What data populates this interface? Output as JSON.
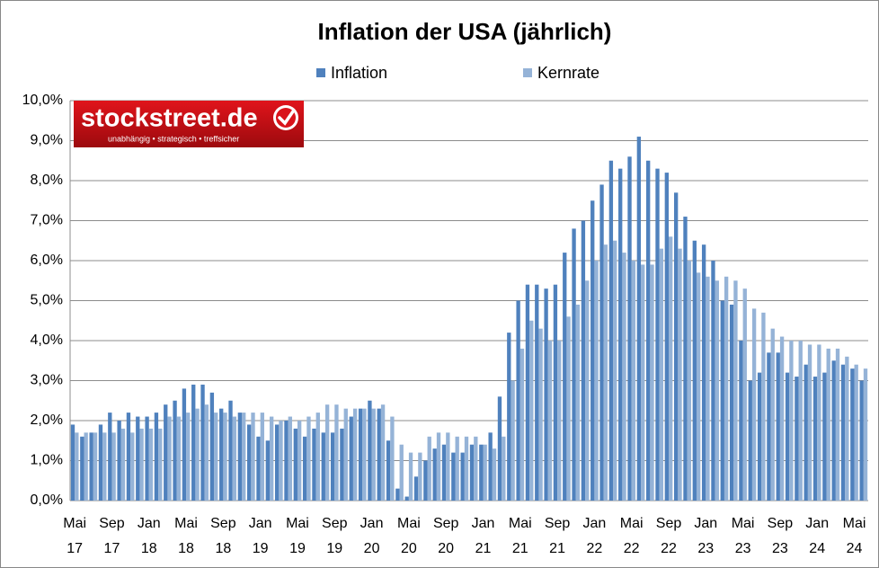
{
  "chart_data": {
    "type": "bar",
    "title": "Inflation der USA (jährlich)",
    "logo": {
      "name": "stockstreet.de",
      "tagline": "unabhängig • strategisch • treffsicher"
    },
    "categories": [
      "Mai 17",
      null,
      null,
      null,
      "Sep 17",
      null,
      null,
      null,
      "Jan 18",
      null,
      null,
      null,
      "Mai 18",
      null,
      null,
      null,
      "Sep 18",
      null,
      null,
      null,
      "Jan 19",
      null,
      null,
      null,
      "Mai 19",
      null,
      null,
      null,
      "Sep 19",
      null,
      null,
      null,
      "Jan 20",
      null,
      null,
      null,
      "Mai 20",
      null,
      null,
      null,
      "Sep 20",
      null,
      null,
      null,
      "Jan 21",
      null,
      null,
      null,
      "Mai 21",
      null,
      null,
      null,
      "Sep 21",
      null,
      null,
      null,
      "Jan 22",
      null,
      null,
      null,
      "Mai 22",
      null,
      null,
      null,
      "Sep 22",
      null,
      null,
      null,
      "Jan 23",
      null,
      null,
      null,
      "Mai 23",
      null,
      null,
      null,
      "Sep 23",
      null,
      null,
      null,
      "Jan 24",
      null,
      null,
      null,
      "Mai 24",
      null
    ],
    "series": [
      {
        "name": "Inflation",
        "color": "#4f81bd",
        "values": [
          1.9,
          1.6,
          1.7,
          1.9,
          2.2,
          2.0,
          2.2,
          2.1,
          2.1,
          2.2,
          2.4,
          2.5,
          2.8,
          2.9,
          2.9,
          2.7,
          2.3,
          2.5,
          2.2,
          1.9,
          1.6,
          1.5,
          1.9,
          2.0,
          1.8,
          1.6,
          1.8,
          1.7,
          1.7,
          1.8,
          2.1,
          2.3,
          2.5,
          2.3,
          1.5,
          0.3,
          0.1,
          0.6,
          1.0,
          1.3,
          1.4,
          1.2,
          1.2,
          1.4,
          1.4,
          1.7,
          2.6,
          4.2,
          5.0,
          5.4,
          5.4,
          5.3,
          5.4,
          6.2,
          6.8,
          7.0,
          7.5,
          7.9,
          8.5,
          8.3,
          8.6,
          9.1,
          8.5,
          8.3,
          8.2,
          7.7,
          7.1,
          6.5,
          6.4,
          6.0,
          5.0,
          4.9,
          4.0,
          3.0,
          3.2,
          3.7,
          3.7,
          3.2,
          3.1,
          3.4,
          3.1,
          3.2,
          3.5,
          3.4,
          3.3,
          3.0
        ]
      },
      {
        "name": "Kernrate",
        "color": "#95b3d7",
        "values": [
          1.7,
          1.7,
          1.7,
          1.7,
          1.7,
          1.8,
          1.7,
          1.8,
          1.8,
          1.8,
          2.1,
          2.1,
          2.2,
          2.3,
          2.4,
          2.2,
          2.2,
          2.1,
          2.2,
          2.2,
          2.2,
          2.1,
          2.0,
          2.1,
          2.0,
          2.1,
          2.2,
          2.4,
          2.4,
          2.3,
          2.3,
          2.3,
          2.3,
          2.4,
          2.1,
          1.4,
          1.2,
          1.2,
          1.6,
          1.7,
          1.7,
          1.6,
          1.6,
          1.6,
          1.4,
          1.3,
          1.6,
          3.0,
          3.8,
          4.5,
          4.3,
          4.0,
          4.0,
          4.6,
          4.9,
          5.5,
          6.0,
          6.4,
          6.5,
          6.2,
          6.0,
          5.9,
          5.9,
          6.3,
          6.6,
          6.3,
          6.0,
          5.7,
          5.6,
          5.5,
          5.6,
          5.5,
          5.3,
          4.8,
          4.7,
          4.3,
          4.1,
          4.0,
          4.0,
          3.9,
          3.9,
          3.8,
          3.8,
          3.6,
          3.4,
          3.3
        ]
      }
    ],
    "ylim": [
      0,
      10
    ],
    "yticks": [
      {
        "value": 0,
        "label": "0,0%"
      },
      {
        "value": 1,
        "label": "1,0%"
      },
      {
        "value": 2,
        "label": "2,0%"
      },
      {
        "value": 3,
        "label": "3,0%"
      },
      {
        "value": 4,
        "label": "4,0%"
      },
      {
        "value": 5,
        "label": "5,0%"
      },
      {
        "value": 6,
        "label": "6,0%"
      },
      {
        "value": 7,
        "label": "7,0%"
      },
      {
        "value": 8,
        "label": "8,0%"
      },
      {
        "value": 9,
        "label": "9,0%"
      },
      {
        "value": 10,
        "label": "10,0%"
      }
    ],
    "grid": true,
    "legend": "top"
  }
}
